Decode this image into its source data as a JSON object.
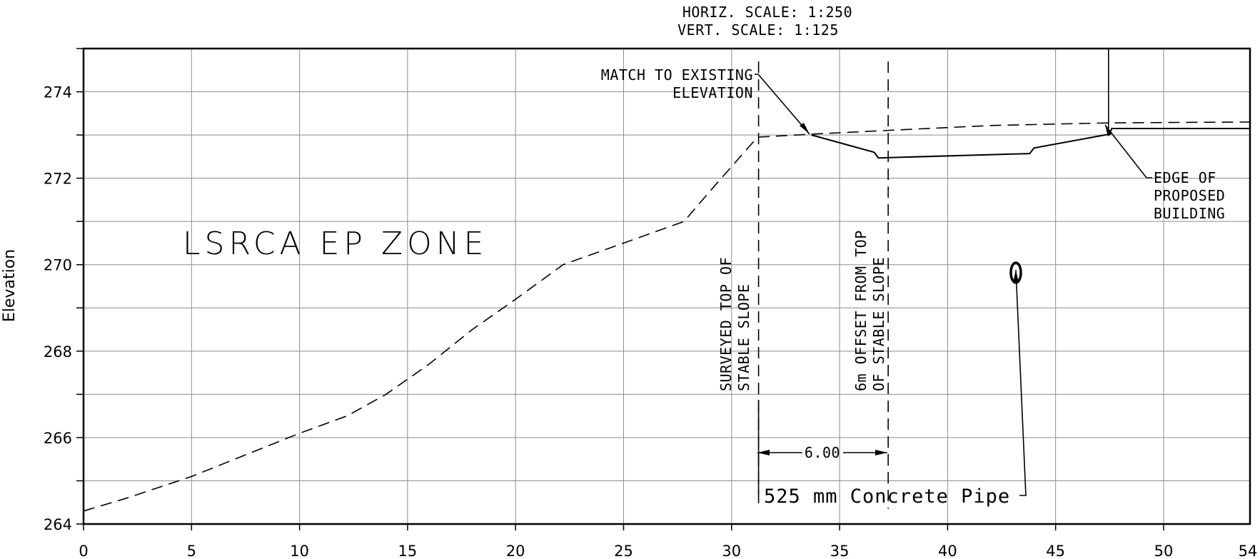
{
  "scale": {
    "horizontal": "HORIZ. SCALE: 1:250",
    "vertical": "VERT. SCALE: 1:125"
  },
  "axes": {
    "ylabel": "Elevation",
    "x_ticks": [
      "0",
      "5",
      "10",
      "15",
      "20",
      "25",
      "30",
      "35",
      "40",
      "45",
      "50",
      "54"
    ],
    "y_ticks": [
      "274",
      "272",
      "270",
      "268",
      "266",
      "264"
    ],
    "xlim": [
      0,
      54
    ],
    "ylim": [
      264,
      275
    ]
  },
  "annotations": {
    "zone": "LSRCA EP ZONE",
    "match_line1": "MATCH TO EXISTING",
    "match_line2": "ELEVATION",
    "surveyed_line1": "SURVEYED TOP OF",
    "surveyed_line2": "STABLE SLOPE",
    "offset_line1": "6m OFFSET FROM TOP",
    "offset_line2": "OF STABLE SLOPE",
    "edge_line1": "EDGE OF",
    "edge_line2": "PROPOSED",
    "edge_line3": "BUILDING",
    "dimension": "6.00",
    "pipe": "525 mm Concrete Pipe"
  },
  "chart_data": {
    "type": "line",
    "x": [],
    "series": [
      {
        "style": "dashed",
        "points": [
          [
            0,
            264.3
          ],
          [
            2,
            264.6
          ],
          [
            5,
            265.1
          ],
          [
            8,
            265.7
          ],
          [
            10,
            266.1
          ],
          [
            12.2,
            266.5
          ],
          [
            14,
            267.0
          ],
          [
            16,
            267.7
          ],
          [
            18,
            268.5
          ],
          [
            20,
            269.2
          ],
          [
            22.2,
            270.0
          ],
          [
            25,
            270.5
          ],
          [
            27.8,
            271.0
          ],
          [
            29,
            271.7
          ],
          [
            31.2,
            272.95
          ],
          [
            33.7,
            273.02
          ],
          [
            37,
            273.1
          ],
          [
            42,
            273.22
          ],
          [
            47.5,
            273.28
          ],
          [
            54,
            273.3
          ]
        ]
      },
      {
        "style": "solid",
        "points": [
          [
            33.7,
            273.0
          ],
          [
            36.6,
            272.6
          ],
          [
            36.8,
            272.47
          ],
          [
            43.8,
            272.57
          ],
          [
            44,
            272.7
          ],
          [
            47.5,
            273.02
          ],
          [
            47.6,
            273.15
          ],
          [
            54,
            273.15
          ]
        ]
      }
    ],
    "vertical_lines": [
      {
        "x": 31.25,
        "style": "dashed",
        "y_range": [
          264.7,
          274.7
        ]
      },
      {
        "x": 37.25,
        "style": "dashed",
        "y_range": [
          264.35,
          274.7
        ]
      },
      {
        "x": 47.45,
        "style": "solid",
        "y_range": [
          273.15,
          275
        ]
      }
    ],
    "pipe": {
      "x": 43.3,
      "y": 269.8
    }
  }
}
